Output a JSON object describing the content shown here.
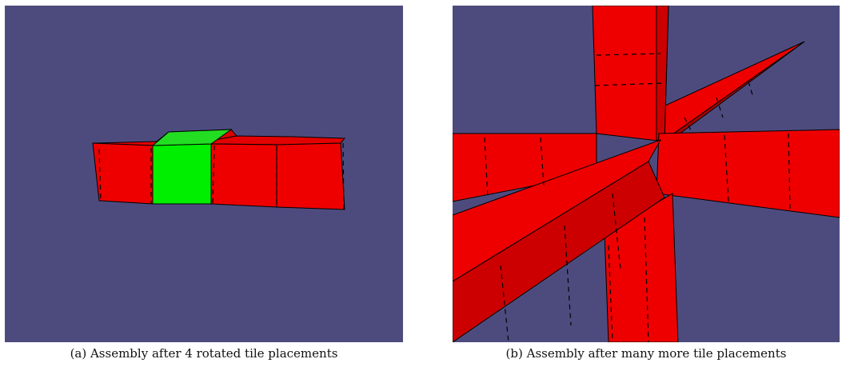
{
  "figure": {
    "panel_a": {
      "caption": "(a) Assembly after 4 rotated tile placements"
    },
    "panel_b": {
      "caption": "(b) Assembly after many more tile placements"
    }
  },
  "colors": {
    "background": "#4d4b7e",
    "tile_red": "#ee0000",
    "tile_red_dark": "#cc0000",
    "tile_green": "#00ee00",
    "edge": "#000000"
  }
}
